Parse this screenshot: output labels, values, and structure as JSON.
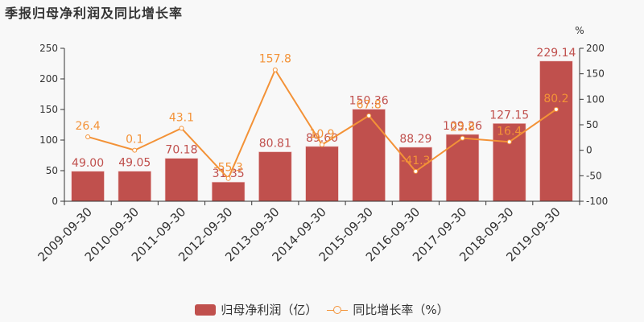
{
  "title": "季报归母净利润及同比增长率",
  "legend": {
    "bar_label": "归母净利润（亿）",
    "line_label": "同比增长率（%）"
  },
  "right_axis_unit": "%",
  "colors": {
    "bar": "#c0504d",
    "bar_label": "#c0504d",
    "line": "#f39237",
    "axis": "#333333"
  },
  "chart_data": {
    "type": "bar+line",
    "title": "季报归母净利润及同比增长率",
    "categories": [
      "2009-09-30",
      "2010-09-30",
      "2011-09-30",
      "2012-09-30",
      "2013-09-30",
      "2014-09-30",
      "2015-09-30",
      "2016-09-30",
      "2017-09-30",
      "2018-09-30",
      "2019-09-30"
    ],
    "series": [
      {
        "name": "归母净利润（亿）",
        "type": "bar",
        "axis": "left",
        "values": [
          49.0,
          49.05,
          70.18,
          31.35,
          80.81,
          89.6,
          150.36,
          88.29,
          109.26,
          127.15,
          229.14
        ],
        "labels": [
          "49.00",
          "49.05",
          "70.18",
          "31.35",
          "80.81",
          "89.60",
          "150.36",
          "88.29",
          "109.26",
          "127.15",
          "229.14"
        ]
      },
      {
        "name": "同比增长率（%）",
        "type": "line",
        "axis": "right",
        "values": [
          26.4,
          0.1,
          43.1,
          -55.3,
          157.8,
          10.9,
          67.8,
          -41.3,
          23.8,
          16.4,
          80.2
        ],
        "labels": [
          "26.4",
          "0.1",
          "43.1",
          "-55.3",
          "157.8",
          "10.9",
          "67.8",
          "-41.3",
          "23.8",
          "16.4",
          "80.2"
        ]
      }
    ],
    "left_axis": {
      "ylim": [
        0,
        250
      ],
      "ticks": [
        "0",
        "50",
        "100",
        "150",
        "200",
        "250"
      ]
    },
    "right_axis": {
      "ylim": [
        -100,
        200
      ],
      "ticks": [
        "-100",
        "-50",
        "0",
        "50",
        "100",
        "150",
        "200"
      ],
      "label": "%"
    },
    "legend_position": "bottom",
    "grid": false
  }
}
